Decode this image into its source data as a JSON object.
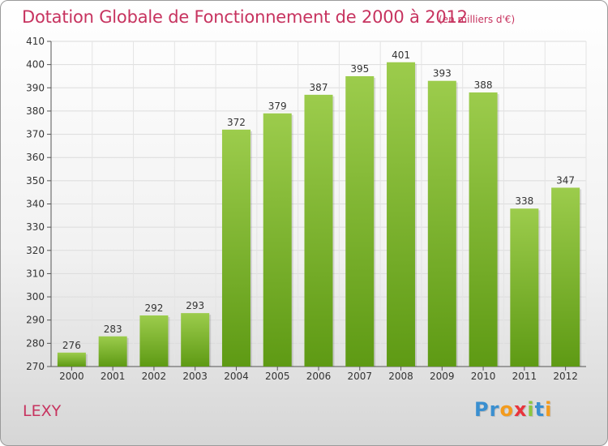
{
  "header": {
    "title": "Dotation Globale de Fonctionnement de 2000 à 2012",
    "unit": "(en milliers d'€)"
  },
  "footer": {
    "commune": "LEXY",
    "logo_letters": [
      "P",
      "r",
      "o",
      "x",
      "i",
      "t",
      "i"
    ],
    "logo_colors": [
      "#3a8fd0",
      "#3a8fd0",
      "#f39b1d",
      "#e8343c",
      "#8cc63f",
      "#3a8fd0",
      "#f39b1d"
    ]
  },
  "chart_data": {
    "type": "bar",
    "title": "Dotation Globale de Fonctionnement de 2000 à 2012",
    "categories": [
      "2000",
      "2001",
      "2002",
      "2003",
      "2004",
      "2005",
      "2006",
      "2007",
      "2008",
      "2009",
      "2010",
      "2011",
      "2012"
    ],
    "values": [
      276,
      283,
      292,
      293,
      372,
      379,
      387,
      395,
      401,
      393,
      388,
      338,
      347
    ],
    "ylim": [
      270,
      410
    ],
    "yticks": [
      270,
      280,
      290,
      300,
      310,
      320,
      330,
      340,
      350,
      360,
      370,
      380,
      390,
      400,
      410
    ],
    "grid": true,
    "bar_color_top": "#9ccc4c",
    "bar_color_bottom": "#5e9a14"
  }
}
